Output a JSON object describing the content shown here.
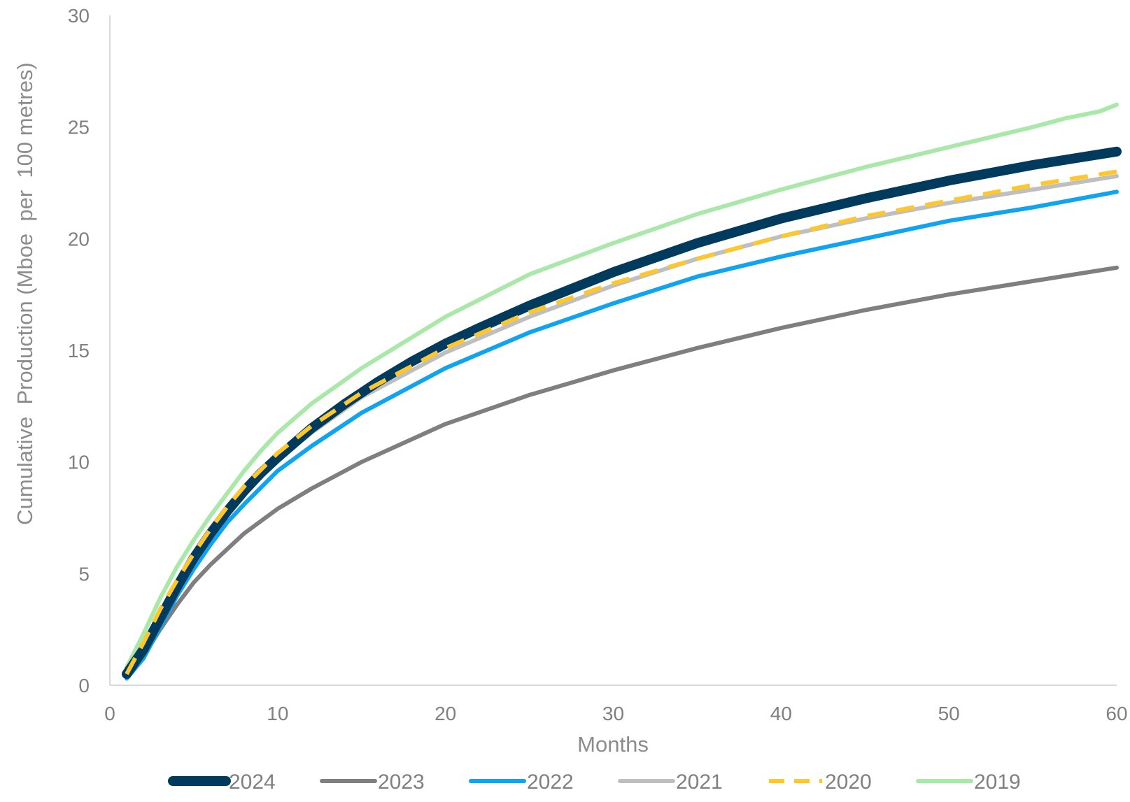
{
  "chart_data": {
    "type": "line",
    "xlabel": "Months",
    "ylabel": "Cumulative  Production (Mboe  per  100 metres)",
    "xlim": [
      0,
      60
    ],
    "ylim": [
      0,
      30
    ],
    "xticks": [
      0,
      10,
      20,
      30,
      40,
      50,
      60
    ],
    "yticks": [
      0,
      5,
      10,
      15,
      20,
      25,
      30
    ],
    "grid": false,
    "legend_position": "bottom",
    "series": [
      {
        "name": "2024",
        "color": "#003A5C",
        "style": "solid",
        "weight": "thick",
        "x": [
          1,
          2,
          3,
          4,
          5,
          6,
          7,
          8,
          9,
          10,
          12,
          14,
          16,
          18,
          20,
          22,
          25,
          28,
          30,
          35,
          40,
          45,
          50,
          55,
          60
        ],
        "y": [
          0.5,
          1.6,
          3.0,
          4.4,
          5.7,
          6.8,
          7.8,
          8.7,
          9.5,
          10.2,
          11.5,
          12.6,
          13.6,
          14.5,
          15.3,
          16.0,
          17.0,
          17.9,
          18.5,
          19.8,
          20.9,
          21.8,
          22.6,
          23.3,
          23.9
        ]
      },
      {
        "name": "2023",
        "color": "#7F7F7F",
        "style": "solid",
        "weight": "medium",
        "x": [
          1,
          2,
          3,
          4,
          5,
          6,
          7,
          8,
          10,
          12,
          15,
          20,
          25,
          30,
          35,
          40,
          45,
          50,
          55,
          60
        ],
        "y": [
          0.4,
          1.3,
          2.5,
          3.6,
          4.6,
          5.4,
          6.1,
          6.8,
          7.9,
          8.8,
          10.0,
          11.7,
          13.0,
          14.1,
          15.1,
          16.0,
          16.8,
          17.5,
          18.1,
          18.7
        ]
      },
      {
        "name": "2022",
        "color": "#0FA3F0",
        "style": "solid",
        "weight": "medium",
        "x": [
          1,
          2,
          3,
          4,
          5,
          6,
          7,
          8,
          10,
          12,
          15,
          20,
          25,
          30,
          35,
          40,
          45,
          50,
          55,
          60
        ],
        "y": [
          0.3,
          1.2,
          2.6,
          4.0,
          5.2,
          6.3,
          7.3,
          8.1,
          9.6,
          10.7,
          12.2,
          14.2,
          15.8,
          17.1,
          18.3,
          19.2,
          20.0,
          20.8,
          21.4,
          22.1
        ]
      },
      {
        "name": "2021",
        "color": "#BFBFBF",
        "style": "solid",
        "weight": "medium",
        "x": [
          1,
          2,
          3,
          4,
          5,
          6,
          7,
          8,
          10,
          12,
          15,
          20,
          25,
          30,
          35,
          40,
          45,
          50,
          55,
          60
        ],
        "y": [
          0.5,
          1.8,
          3.2,
          4.5,
          5.7,
          6.8,
          7.7,
          8.6,
          10.1,
          11.3,
          12.9,
          14.9,
          16.5,
          17.9,
          19.1,
          20.1,
          20.9,
          21.6,
          22.2,
          22.8
        ]
      },
      {
        "name": "2020",
        "color": "#FFC72C",
        "style": "dashed",
        "weight": "medium",
        "x": [
          1,
          2,
          3,
          4,
          5,
          6,
          7,
          8,
          10,
          12,
          15,
          20,
          25,
          30,
          35,
          40,
          45,
          50,
          55,
          60
        ],
        "y": [
          0.5,
          1.9,
          3.4,
          4.7,
          5.9,
          7.0,
          8.0,
          8.9,
          10.4,
          11.6,
          13.1,
          15.1,
          16.7,
          18.0,
          19.1,
          20.1,
          21.0,
          21.7,
          22.4,
          23.0
        ]
      },
      {
        "name": "2019",
        "color": "#A9E8A9",
        "style": "solid",
        "weight": "medium",
        "x": [
          1,
          2,
          3,
          4,
          5,
          6,
          7,
          8,
          9,
          10,
          12,
          15,
          20,
          25,
          30,
          35,
          40,
          45,
          50,
          55,
          56,
          57,
          59,
          60
        ],
        "y": [
          0.8,
          2.3,
          3.9,
          5.3,
          6.5,
          7.6,
          8.6,
          9.6,
          10.5,
          11.3,
          12.6,
          14.2,
          16.5,
          18.4,
          19.8,
          21.1,
          22.2,
          23.2,
          24.1,
          25.0,
          25.2,
          25.4,
          25.7,
          26.0
        ]
      }
    ]
  }
}
